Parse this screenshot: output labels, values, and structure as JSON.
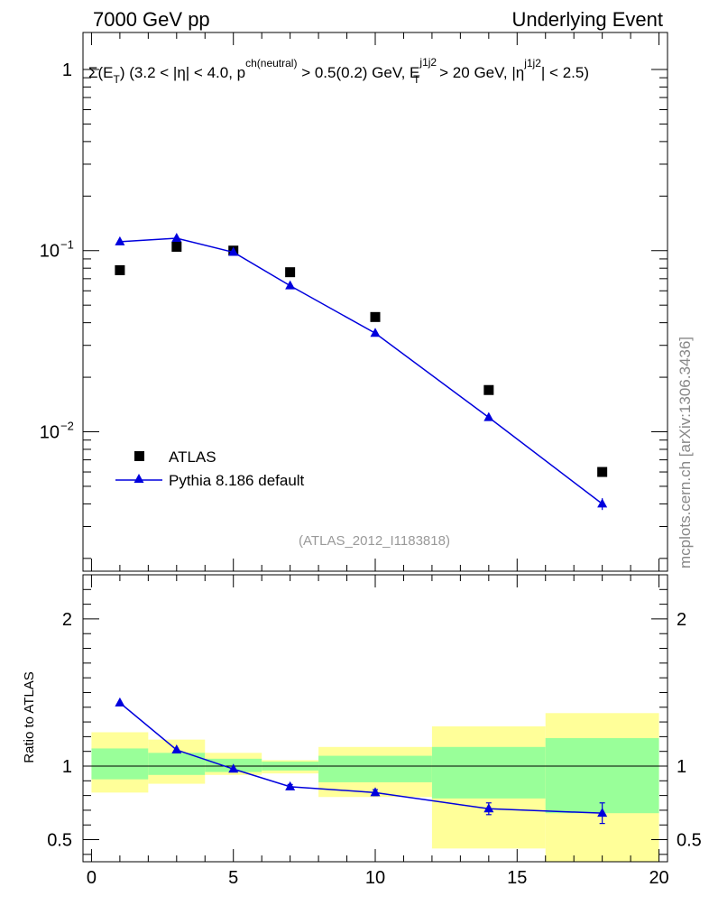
{
  "header": {
    "left": "7000 GeV pp",
    "right": "Underlying Event"
  },
  "side_label": "mcplots.cern.ch [arXiv:1306.3436]",
  "colors": {
    "data": "#000000",
    "mc": "#0000dd",
    "band_inner": "#99ff99",
    "band_outer": "#ffff99"
  },
  "chart_data": [
    {
      "type": "scatter",
      "title": "Σ(E_T) (3.2 < |η| < 4.0, p^ch(neutral) > 0.5(0.2) GeV, E_T^j1j2 > 20 GeV, |η^j1j2| < 2.5)",
      "title_parts": {
        "a": "Σ(E",
        "a_sub": "T",
        "b": ") (3.2 < |η| < 4.0, p",
        "b_sup": "ch(neutral)",
        "c": " > 0.5(0.2) GeV, E",
        "c_sup": "j1j2",
        "c_sub": "T",
        "d": " > 20 GeV, |η",
        "d_sup": "j1j2",
        "e": "| < 2.5)"
      },
      "annotation": "(ATLAS_2012_I1183818)",
      "y_scale": "log",
      "xlim": [
        -0.3,
        20.3
      ],
      "ylim": [
        0.0017,
        1.6
      ],
      "y_ticks": [
        {
          "value": 1,
          "label": "1"
        },
        {
          "value": 0.1,
          "label": "10",
          "sup": "−1"
        },
        {
          "value": 0.01,
          "label": "10",
          "sup": "−2"
        }
      ],
      "legend_placement": "lower-left",
      "series": [
        {
          "name": "ATLAS",
          "marker": "square",
          "x": [
            1,
            3,
            5,
            7,
            10,
            14,
            18
          ],
          "y": [
            0.078,
            0.105,
            0.1,
            0.076,
            0.043,
            0.017,
            0.006
          ]
        },
        {
          "name": "Pythia 8.186 default",
          "marker": "triangle",
          "x": [
            1,
            3,
            5,
            7,
            10,
            14,
            18
          ],
          "y": [
            0.112,
            0.117,
            0.098,
            0.064,
            0.035,
            0.012,
            0.004
          ],
          "yerr": [
            0,
            0,
            0,
            0,
            0,
            0,
            0.0003
          ]
        }
      ]
    },
    {
      "type": "line",
      "ylabel": "Ratio to ATLAS",
      "xlim": [
        -0.3,
        20.3
      ],
      "ylim": [
        0.35,
        2.3
      ],
      "x_ticks": [
        0,
        5,
        10,
        15,
        20
      ],
      "y_ticks": [
        {
          "value": 0.5,
          "label": "0.5"
        },
        {
          "value": 1,
          "label": "1"
        },
        {
          "value": 2,
          "label": "2"
        }
      ],
      "reference_line": 1,
      "bands": [
        {
          "x0": 0,
          "x1": 2,
          "inner": [
            0.91,
            1.12
          ],
          "outer": [
            0.82,
            1.23
          ]
        },
        {
          "x0": 2,
          "x1": 4,
          "inner": [
            0.94,
            1.09
          ],
          "outer": [
            0.88,
            1.18
          ]
        },
        {
          "x0": 4,
          "x1": 6,
          "inner": [
            0.96,
            1.05
          ],
          "outer": [
            0.94,
            1.09
          ]
        },
        {
          "x0": 6,
          "x1": 8,
          "inner": [
            0.97,
            1.03
          ],
          "outer": [
            0.95,
            1.04
          ]
        },
        {
          "x0": 8,
          "x1": 12,
          "inner": [
            0.89,
            1.07
          ],
          "outer": [
            0.79,
            1.13
          ]
        },
        {
          "x0": 12,
          "x1": 16,
          "inner": [
            0.78,
            1.13
          ],
          "outer": [
            0.44,
            1.27
          ]
        },
        {
          "x0": 16,
          "x1": 20,
          "inner": [
            0.68,
            1.19
          ],
          "outer": [
            0.35,
            1.36
          ]
        }
      ],
      "series": [
        {
          "name": "Pythia 8.186 default",
          "marker": "triangle",
          "x": [
            1,
            3,
            5,
            7,
            10,
            14,
            18
          ],
          "y": [
            1.43,
            1.11,
            0.98,
            0.86,
            0.82,
            0.71,
            0.68
          ],
          "yerr": [
            0,
            0,
            0,
            0.015,
            0.02,
            0.04,
            0.07
          ]
        }
      ]
    }
  ]
}
